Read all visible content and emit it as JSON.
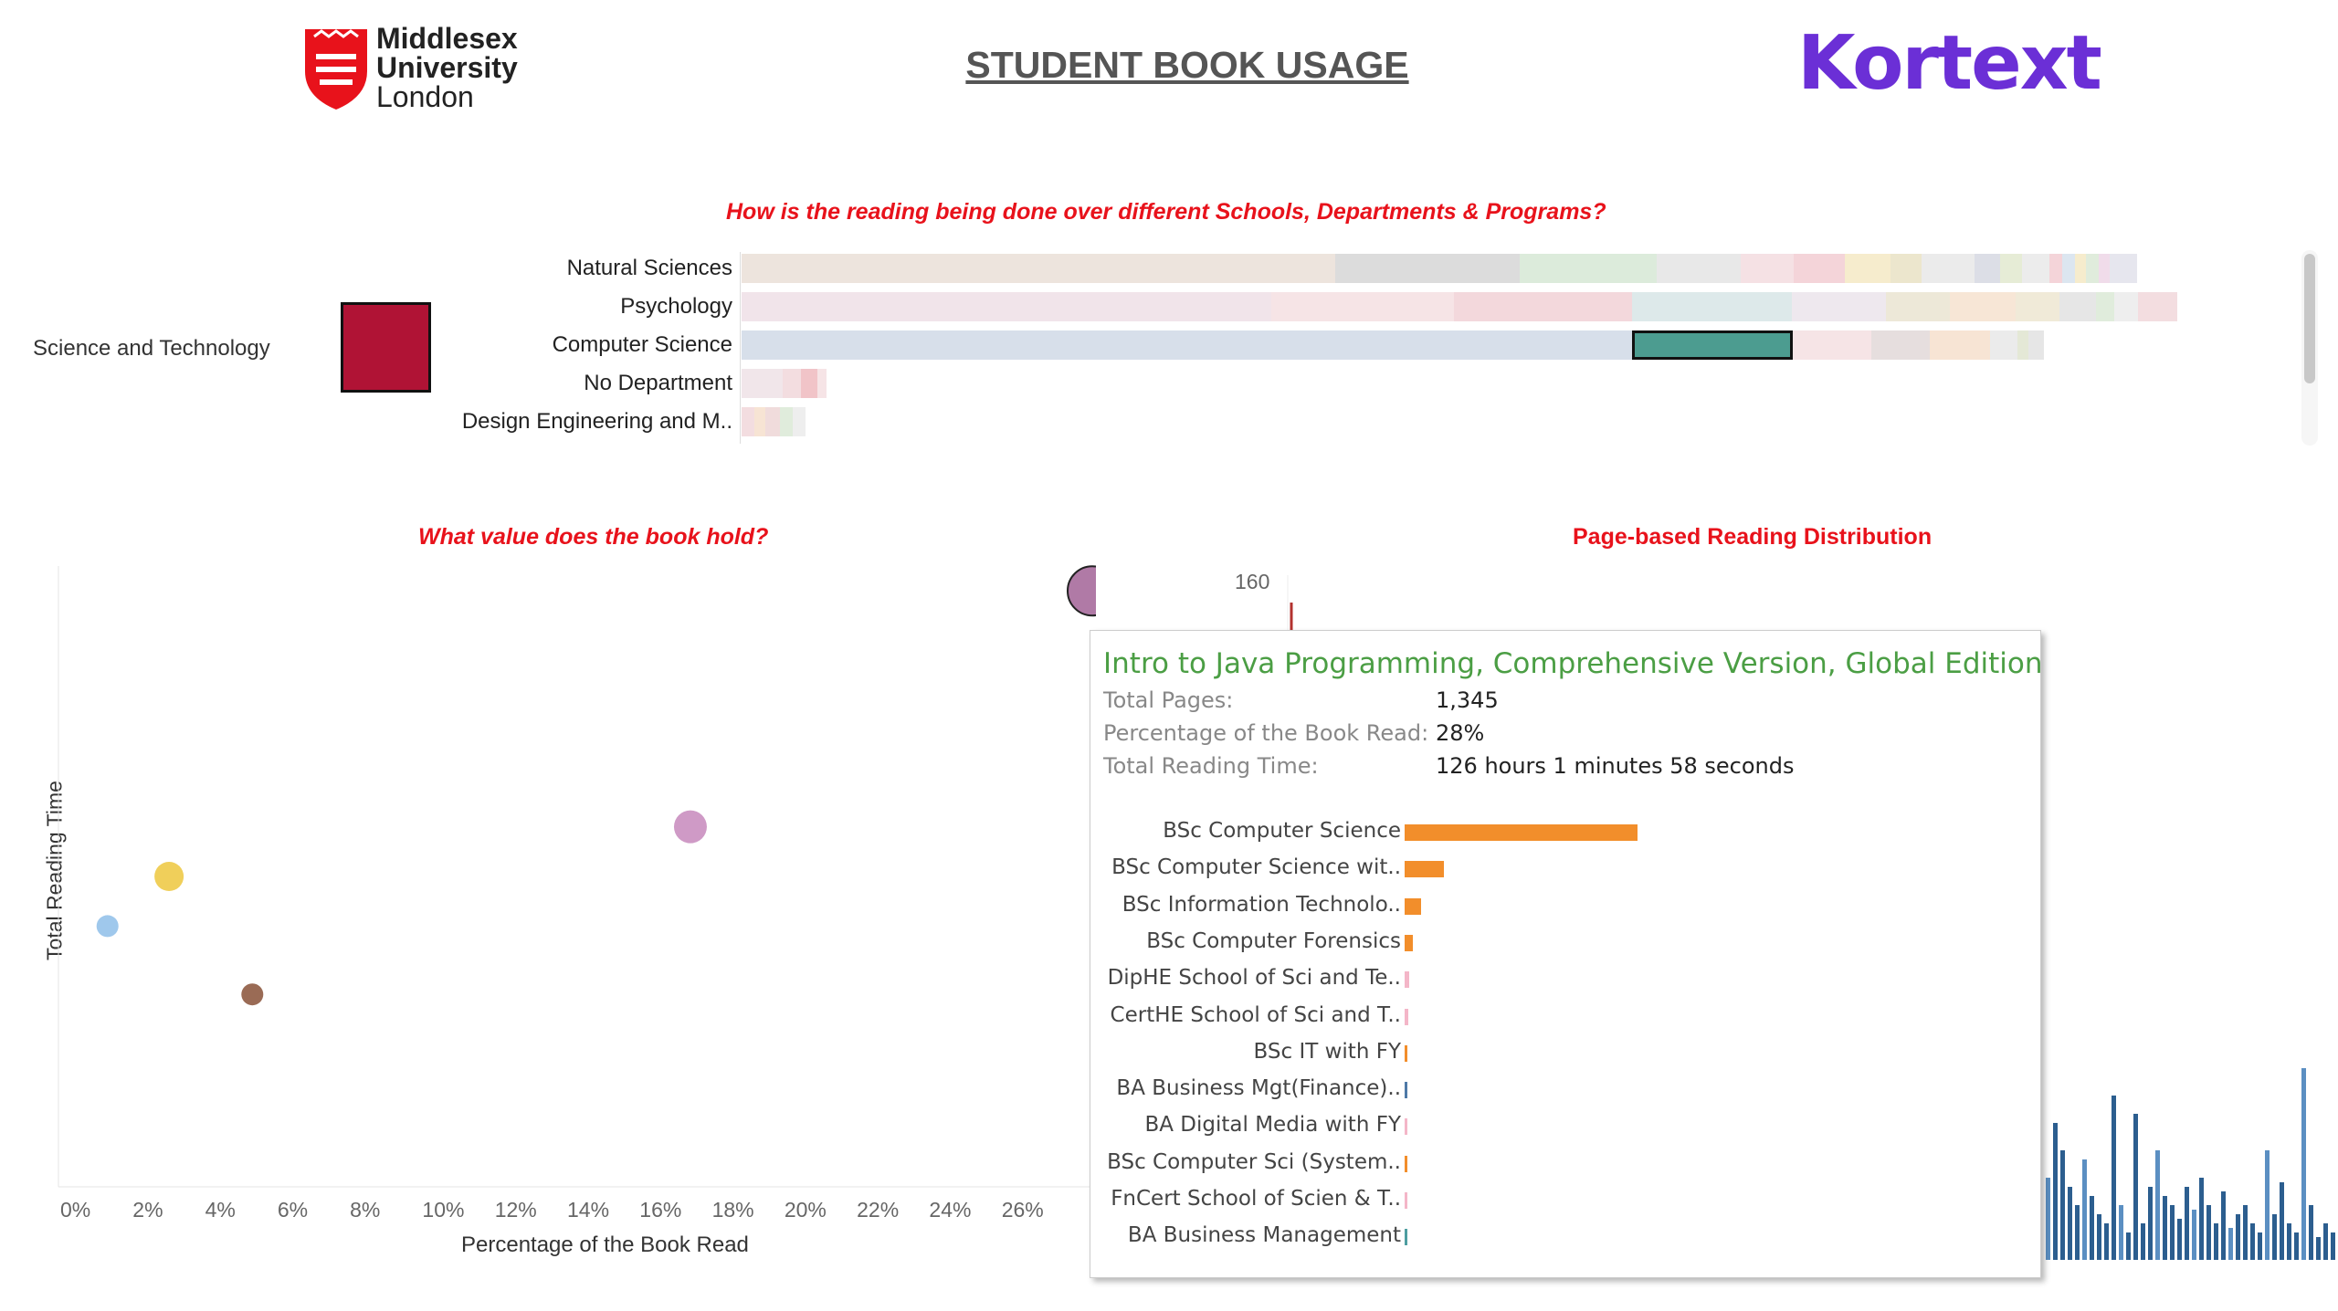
{
  "header": {
    "university_name_line1": "Middlesex",
    "university_name_line2": "University",
    "university_name_line3": "London",
    "page_title": "STUDENT BOOK USAGE",
    "brand_logo": "Kortext",
    "brand_color": "#6b2fd6",
    "university_color": "#e8121b"
  },
  "reading_section": {
    "title": "How is the reading being done over different Schools, Departments & Programs?",
    "school": "Science and Technology",
    "school_color": "#b01335",
    "departments": [
      "Natural Sciences",
      "Psychology",
      "Computer Science",
      "No Department",
      "Design Engineering and M.."
    ]
  },
  "value_section": {
    "title": "What value does the book hold?",
    "y_axis_title": "Total Reading Time",
    "x_axis_title": "Percentage of the Book Read"
  },
  "distribution_section": {
    "title": "Page-based Reading Distribution",
    "y_tick": "160"
  },
  "chart_data": {
    "type": "scatter",
    "xlabel": "Percentage of the Book Read",
    "ylabel": "Total Reading Time",
    "x_ticks": [
      "0%",
      "2%",
      "4%",
      "6%",
      "8%",
      "10%",
      "12%",
      "14%",
      "16%",
      "18%",
      "20%",
      "22%",
      "24%",
      "26%"
    ],
    "xlim": [
      0,
      28
    ],
    "points": [
      {
        "x": 0.8,
        "y": 0.42,
        "color": "#9fc8ec"
      },
      {
        "x": 2.5,
        "y": 0.5,
        "color": "#f0cf5a"
      },
      {
        "x": 4.8,
        "y": 0.31,
        "color": "#9a6b55"
      },
      {
        "x": 16.9,
        "y": 0.58,
        "color": "#cf9ac6"
      },
      {
        "x": 28,
        "y": 0.96,
        "color": "#b07aa6",
        "highlight": true
      }
    ]
  },
  "tooltip": {
    "title": "Intro to Java Programming, Comprehensive Version, Global Edition",
    "total_pages_label": "Total Pages:",
    "total_pages_value": "1,345",
    "percent_read_label": "Percentage of the Book Read:",
    "percent_read_value": "28%",
    "reading_time_label": "Total Reading Time:",
    "reading_time_value": "126 hours 1 minutes 58 seconds",
    "programs": [
      {
        "name": "BSc Computer Science",
        "value": 1.0,
        "color": "#f28e2b"
      },
      {
        "name": "BSc Computer Science wit..",
        "value": 0.17,
        "color": "#f28e2b"
      },
      {
        "name": "BSc Information Technolo..",
        "value": 0.07,
        "color": "#f28e2b"
      },
      {
        "name": "BSc Computer Forensics",
        "value": 0.035,
        "color": "#f28e2b"
      },
      {
        "name": "DipHE School of Sci and Te..",
        "value": 0.02,
        "color": "#f4b6c8"
      },
      {
        "name": "CertHE School of Sci and T..",
        "value": 0.015,
        "color": "#f4b6c8"
      },
      {
        "name": "BSc IT with FY",
        "value": 0.012,
        "color": "#f28e2b"
      },
      {
        "name": "BA Business Mgt(Finance)..",
        "value": 0.01,
        "color": "#4e79a7"
      },
      {
        "name": "BA Digital Media with FY",
        "value": 0.01,
        "color": "#f4b6c8"
      },
      {
        "name": "BSc Computer Sci (System..",
        "value": 0.01,
        "color": "#f28e2b"
      },
      {
        "name": "FnCert School of Scien & T..",
        "value": 0.008,
        "color": "#f4b6c8"
      },
      {
        "name": "BA Business Management",
        "value": 0.008,
        "color": "#4e9ea0"
      }
    ]
  }
}
